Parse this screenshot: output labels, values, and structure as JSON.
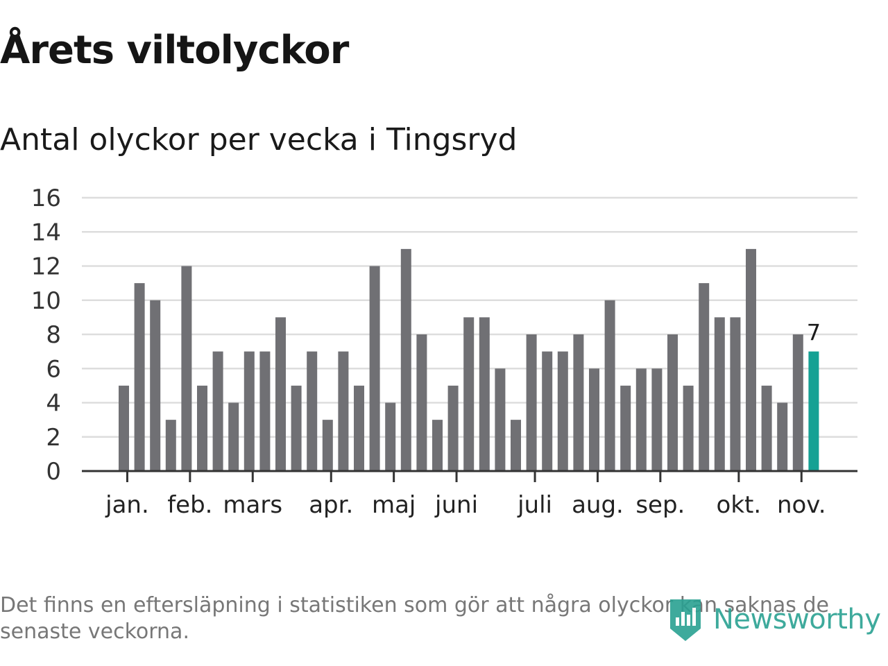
{
  "header": {
    "title": "Årets viltolyckor",
    "subtitle": "Antal olyckor per vecka i Tingsryd"
  },
  "chart_data": {
    "type": "bar",
    "title": "Antal olyckor per vecka i Tingsryd",
    "xlabel": "",
    "ylabel": "",
    "ylim": [
      0,
      16
    ],
    "y_ticks": [
      0,
      2,
      4,
      6,
      8,
      10,
      12,
      14,
      16
    ],
    "grid": true,
    "values": [
      5,
      11,
      10,
      3,
      12,
      5,
      7,
      4,
      7,
      7,
      9,
      5,
      7,
      3,
      7,
      5,
      12,
      4,
      13,
      8,
      3,
      5,
      9,
      9,
      6,
      3,
      8,
      7,
      7,
      8,
      6,
      10,
      5,
      6,
      6,
      8,
      5,
      11,
      9,
      9,
      13,
      5,
      4,
      8,
      7
    ],
    "month_labels": [
      {
        "label": "jan.",
        "bar_index": 0.33
      },
      {
        "label": "feb.",
        "bar_index": 4.33
      },
      {
        "label": "mars",
        "bar_index": 8.33
      },
      {
        "label": "apr.",
        "bar_index": 13.33
      },
      {
        "label": "maj",
        "bar_index": 17.33
      },
      {
        "label": "juni",
        "bar_index": 21.33
      },
      {
        "label": "juli",
        "bar_index": 26.33
      },
      {
        "label": "aug.",
        "bar_index": 30.33
      },
      {
        "label": "sep.",
        "bar_index": 34.33
      },
      {
        "label": "okt.",
        "bar_index": 39.33
      },
      {
        "label": "nov.",
        "bar_index": 43.33
      }
    ],
    "highlight": {
      "bar_index": 44,
      "label": "7"
    },
    "colors": {
      "bar": "#707074",
      "highlight": "#15a194",
      "grid": "#dddddd",
      "axis": "#333333"
    }
  },
  "footer": {
    "note": "Det finns en eftersläpning i statistiken som gör att några olyckor kan saknas de senaste veckorna.",
    "brand": "Newsworthy"
  }
}
